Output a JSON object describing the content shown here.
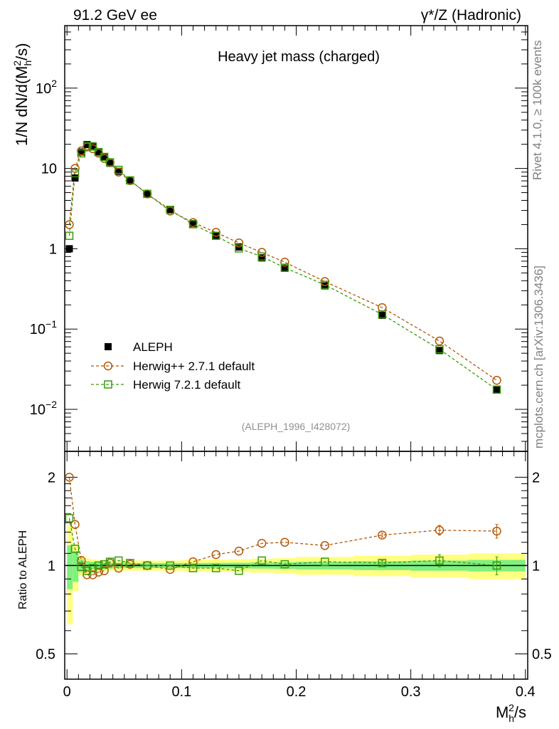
{
  "header": {
    "energy": "91.2 GeV ee",
    "process": "γ*/Z (Hadronic)"
  },
  "side": {
    "rivet": "Rivet 4.1.0, ≥ 100k events",
    "source": "mcplots.cern.ch [arXiv:1306.3436]"
  },
  "chart_data": [
    {
      "type": "scatter",
      "title": "Heavy jet mass (charged)",
      "analysis_id": "(ALEPH_1996_I428072)",
      "ylabel": "1/N  dN/d(M_h^2/s)",
      "xlabel": "M_h^2/s",
      "yscale": "log",
      "xlim": [
        -0.002,
        0.402
      ],
      "ylim": [
        0.003,
        600
      ],
      "y_ticks": [
        {
          "value": 0.01,
          "base": "10",
          "exp": "−2"
        },
        {
          "value": 0.1,
          "base": "10",
          "exp": "−1"
        },
        {
          "value": 1,
          "base": "1",
          "exp": ""
        },
        {
          "value": 10,
          "base": "10",
          "exp": ""
        },
        {
          "value": 100,
          "base": "10",
          "exp": "2"
        }
      ],
      "legend": [
        {
          "name": "ALEPH",
          "color": "#000000",
          "marker": "square-filled"
        },
        {
          "name": "Herwig++ 2.7.1 default",
          "color": "#b35806",
          "marker": "circle-open"
        },
        {
          "name": "Herwig 7.2.1 default",
          "color": "#3a9a0a",
          "marker": "square-open"
        }
      ],
      "x": [
        0.002,
        0.007,
        0.0125,
        0.0175,
        0.0225,
        0.0275,
        0.0325,
        0.0375,
        0.045,
        0.055,
        0.07,
        0.09,
        0.11,
        0.13,
        0.15,
        0.17,
        0.19,
        0.225,
        0.275,
        0.325,
        0.375
      ],
      "series": [
        {
          "name": "ALEPH",
          "values": [
            1.0,
            7.6,
            16.0,
            19.8,
            19.1,
            16.0,
            13.8,
            11.6,
            9.2,
            7.0,
            4.8,
            3.05,
            2.06,
            1.47,
            1.05,
            0.77,
            0.57,
            0.345,
            0.148,
            0.054,
            0.0175
          ]
        },
        {
          "name": "Herwig++ 2.7.1 default",
          "values": [
            2.0,
            10.0,
            16.5,
            18.5,
            17.6,
            15.5,
            13.3,
            11.8,
            9.0,
            7.05,
            4.82,
            2.95,
            2.12,
            1.6,
            1.18,
            0.9,
            0.68,
            0.39,
            0.185,
            0.071,
            0.023
          ]
        },
        {
          "name": "Herwig 7.2.1 default",
          "values": [
            1.45,
            8.7,
            15.4,
            18.9,
            18.7,
            16.0,
            13.9,
            11.9,
            9.6,
            7.1,
            4.82,
            3.05,
            2.02,
            1.45,
            1.01,
            0.8,
            0.58,
            0.355,
            0.152,
            0.056,
            0.0176
          ]
        }
      ]
    },
    {
      "type": "scatter",
      "ylabel": "Ratio to ALEPH",
      "xlabel": "M_h^2/s",
      "yscale": "log",
      "ylim": [
        0.41,
        2.45
      ],
      "y_ticks": [
        0.5,
        1,
        2
      ],
      "x_ticks": [
        0,
        0.1,
        0.2,
        0.3,
        0.4
      ],
      "bins": [
        0.0,
        0.005,
        0.01,
        0.015,
        0.02,
        0.025,
        0.03,
        0.035,
        0.04,
        0.05,
        0.06,
        0.08,
        0.1,
        0.12,
        0.14,
        0.16,
        0.18,
        0.2,
        0.25,
        0.3,
        0.35,
        0.4
      ],
      "band_stat": [
        0.17,
        0.12,
        0.05,
        0.035,
        0.03,
        0.028,
        0.026,
        0.024,
        0.022,
        0.02,
        0.02,
        0.02,
        0.02,
        0.021,
        0.022,
        0.024,
        0.026,
        0.03,
        0.035,
        0.04,
        0.045
      ],
      "band_total": [
        0.37,
        0.18,
        0.08,
        0.06,
        0.05,
        0.045,
        0.042,
        0.04,
        0.04,
        0.04,
        0.04,
        0.04,
        0.045,
        0.048,
        0.05,
        0.055,
        0.06,
        0.07,
        0.08,
        0.09,
        0.1
      ],
      "series": [
        {
          "name": "Herwig++ 2.7.1 default",
          "values": [
            2.0,
            1.38,
            1.04,
            0.93,
            0.93,
            0.95,
            0.96,
            1.02,
            0.98,
            1.01,
            1.0,
            0.97,
            1.03,
            1.09,
            1.12,
            1.19,
            1.2,
            1.17,
            1.27,
            1.32,
            1.31
          ]
        },
        {
          "name": "Herwig 7.2.1 default",
          "values": [
            1.45,
            1.14,
            0.99,
            0.96,
            0.98,
            1.0,
            1.01,
            1.03,
            1.04,
            1.02,
            1.0,
            1.0,
            0.98,
            0.98,
            0.96,
            1.04,
            1.01,
            1.03,
            1.02,
            1.04,
            1.0
          ]
        }
      ],
      "errors": [
        0,
        0,
        0,
        0,
        0,
        0,
        0,
        0,
        0,
        0,
        0,
        0,
        0,
        0,
        0,
        0,
        0,
        0,
        0.02,
        0.05,
        0.07
      ]
    }
  ]
}
